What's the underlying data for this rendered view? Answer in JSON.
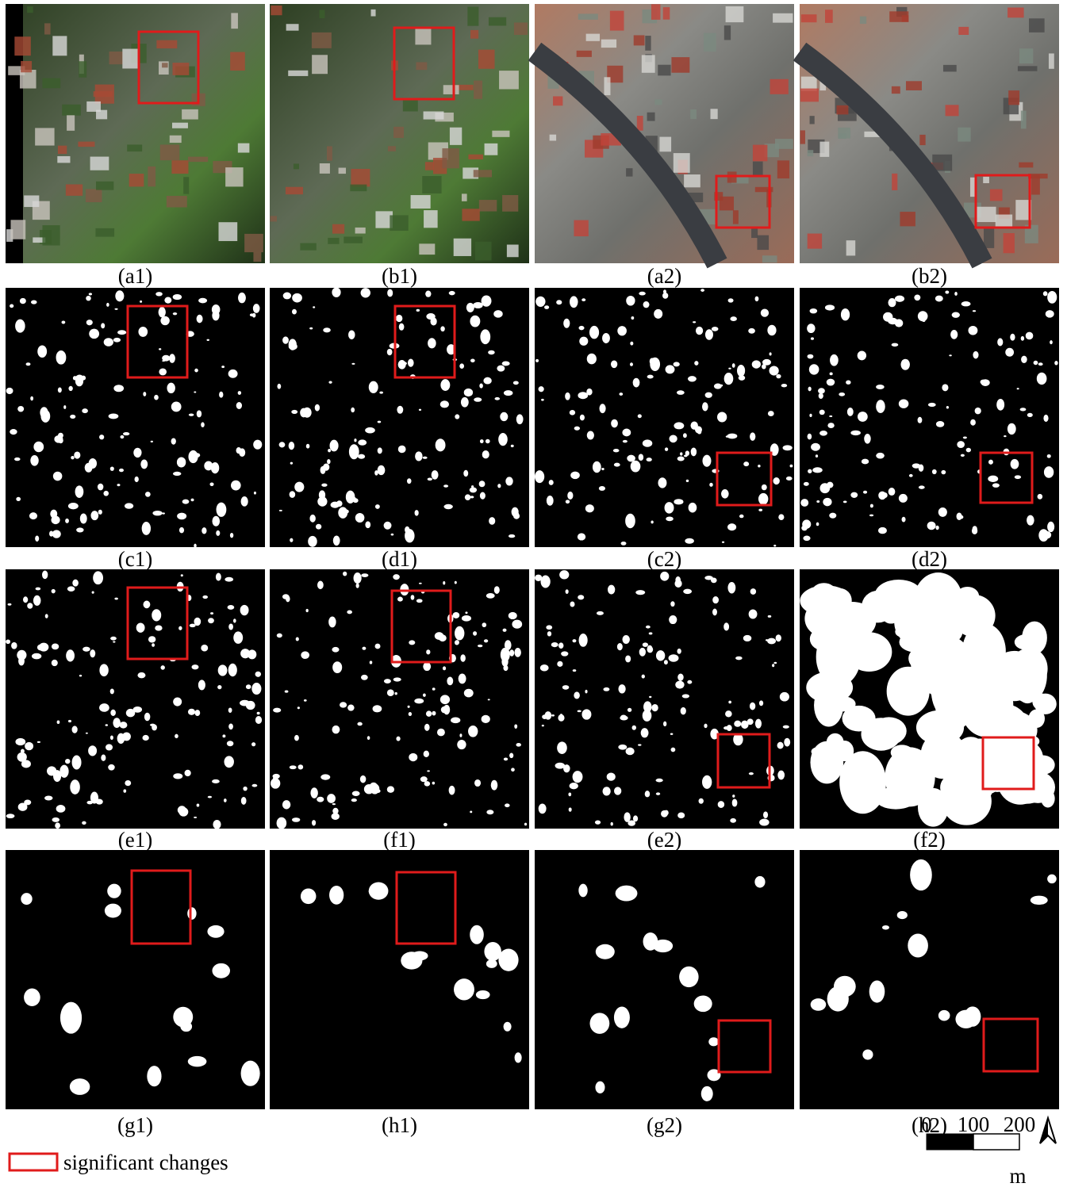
{
  "panels": [
    {
      "label": "(a1)"
    },
    {
      "label": "(b1)"
    },
    {
      "label": "(a2)"
    },
    {
      "label": "(b2)"
    },
    {
      "label": "(c1)"
    },
    {
      "label": "(d1)"
    },
    {
      "label": "(c2)"
    },
    {
      "label": "(d2)"
    },
    {
      "label": "(e1)"
    },
    {
      "label": "(f1)"
    },
    {
      "label": "(e2)"
    },
    {
      "label": "(f2)"
    },
    {
      "label": "(g1)"
    },
    {
      "label": "(h1)"
    },
    {
      "label": "(g2)"
    },
    {
      "label": "(h2)"
    }
  ],
  "legend": {
    "text": "significant changes"
  },
  "scale_bar": {
    "ticks": [
      "0",
      "100",
      "200"
    ],
    "unit": "m"
  }
}
